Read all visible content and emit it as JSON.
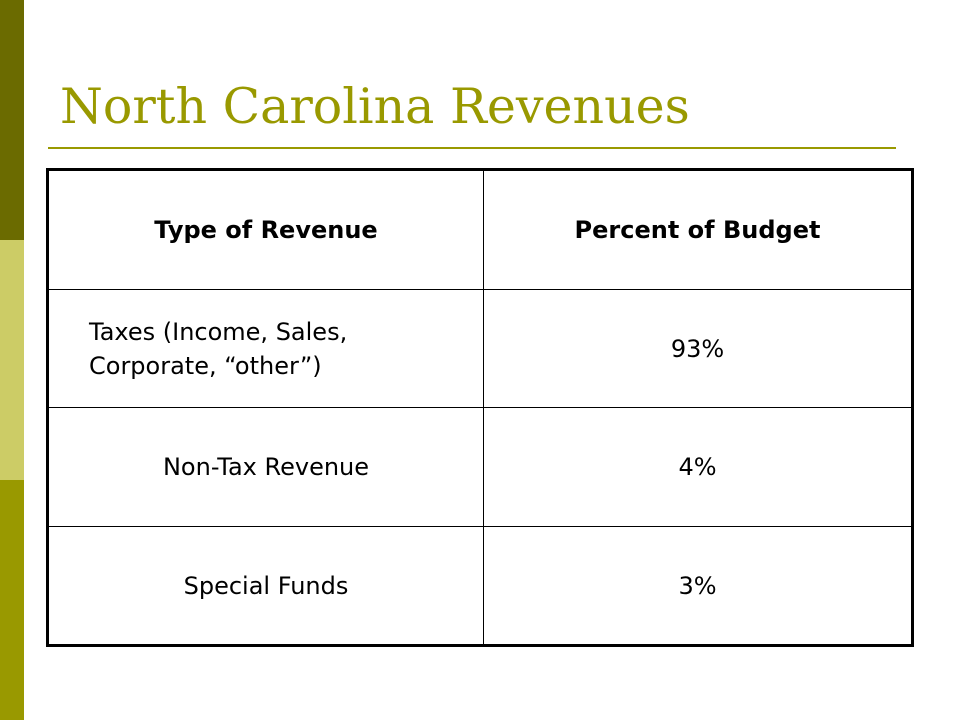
{
  "title": "North Carolina Revenues",
  "table": {
    "headers": [
      "Type of Revenue",
      "Percent of Budget"
    ],
    "rows": [
      {
        "type_line1": "Taxes (Income, Sales,",
        "type_line2": "Corporate, “other”)",
        "percent": "93%"
      },
      {
        "type": "Non-Tax Revenue",
        "percent": "4%"
      },
      {
        "type": "Special Funds",
        "percent": "3%"
      }
    ]
  },
  "colors": {
    "title": "#999900",
    "bar_top": "#6b6b00",
    "bar_mid": "#cccc66",
    "bar_bottom": "#999900"
  }
}
